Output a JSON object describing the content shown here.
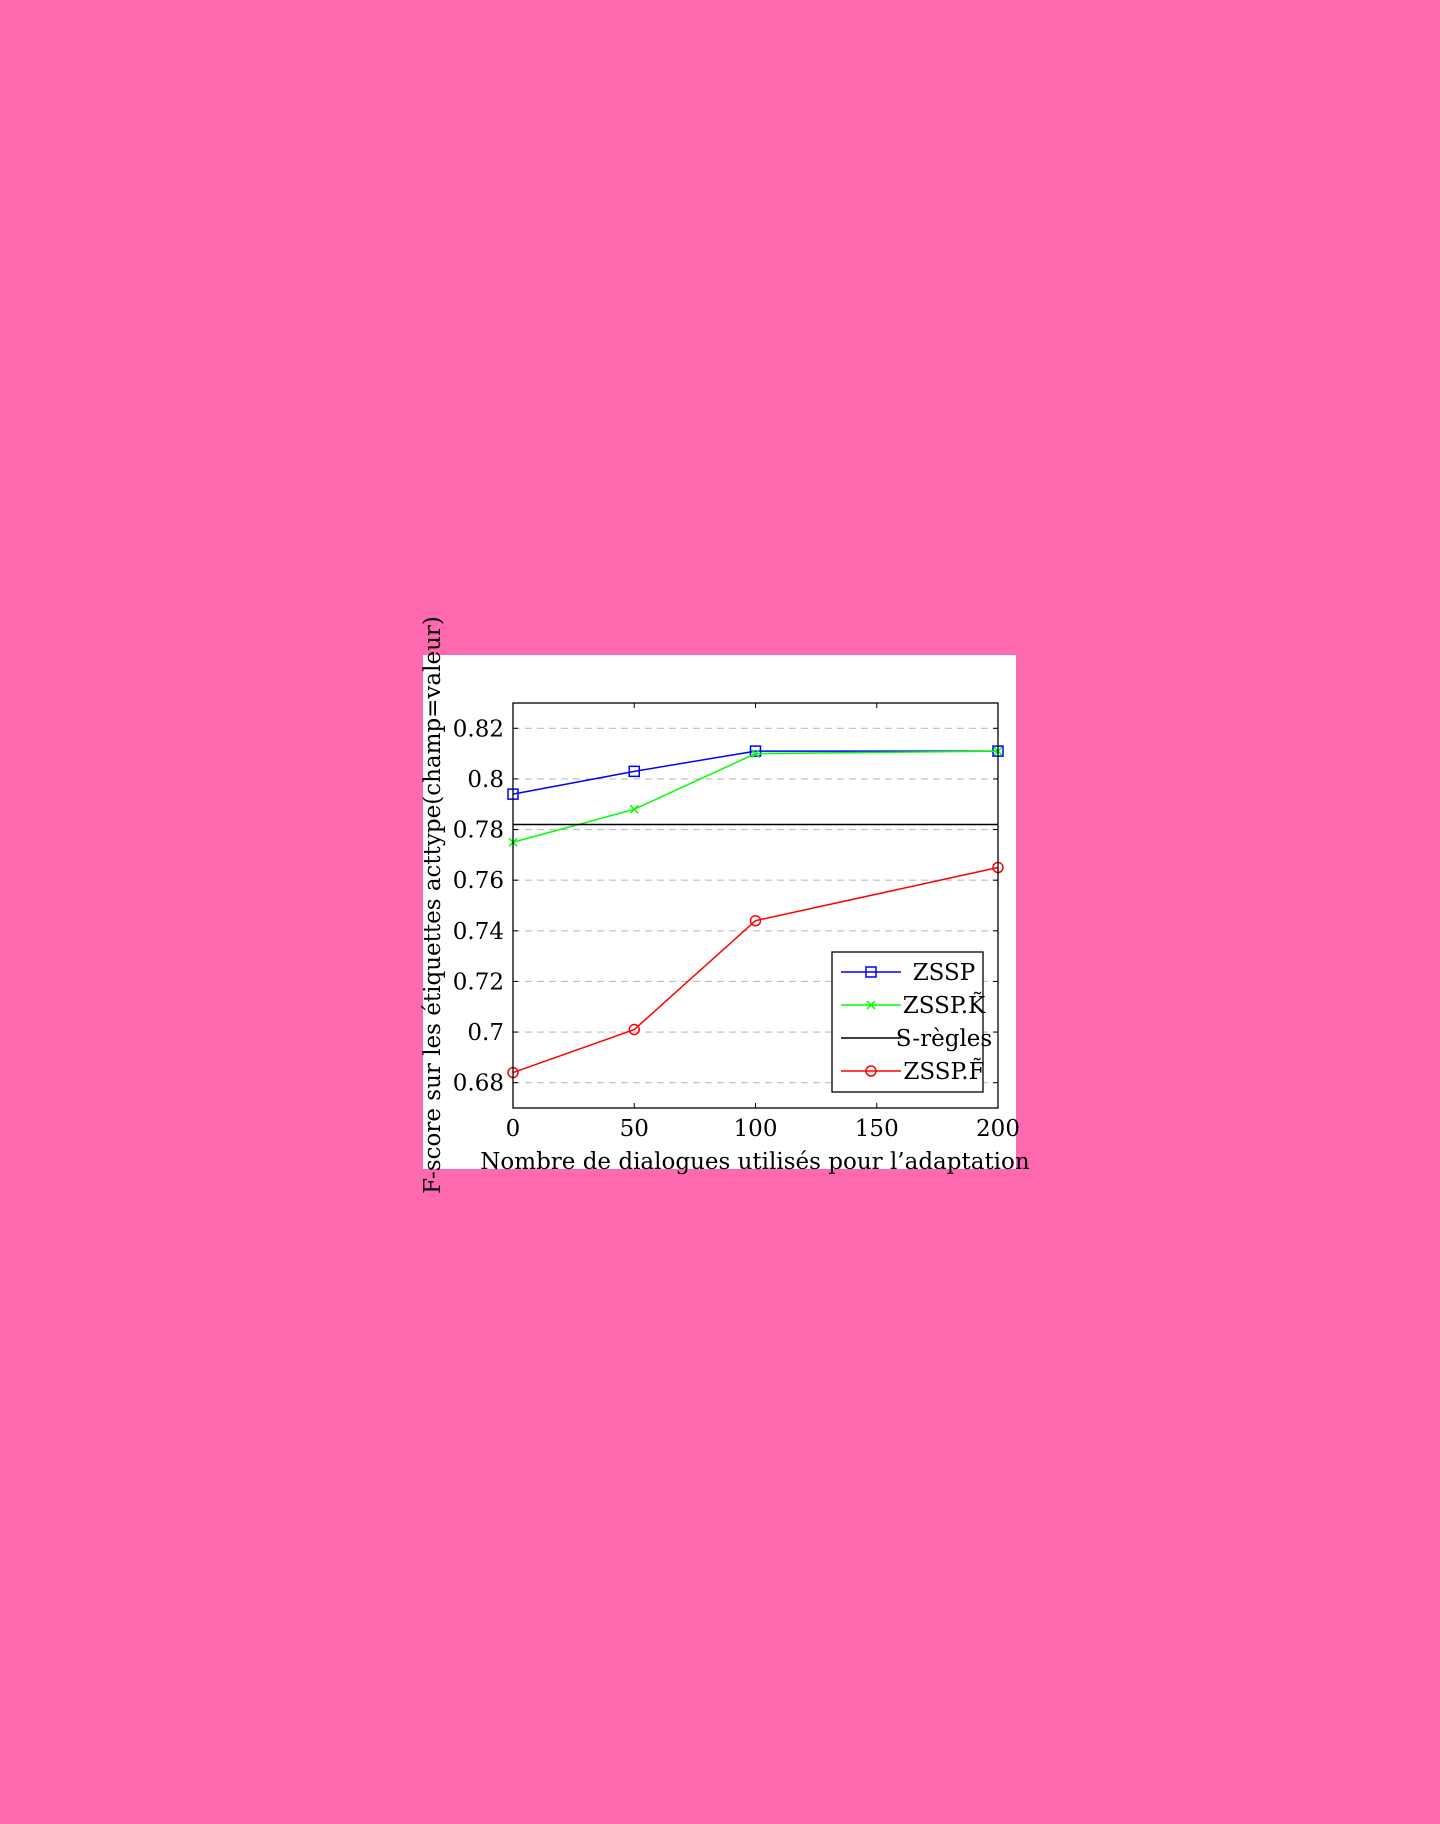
{
  "chart_data": {
    "type": "line",
    "xlabel": "Nombre de dialogues utilisés pour l’adaptation",
    "ylabel": "F-score sur les étiquettes acttype(champ=valeur)",
    "x": [
      0,
      50,
      100,
      150,
      200
    ],
    "xlim": [
      0,
      200
    ],
    "ylim": [
      0.67,
      0.83
    ],
    "x_ticks": [
      "0",
      "50",
      "100",
      "150",
      "200"
    ],
    "y_ticks": [
      "0.68",
      "0.7",
      "0.72",
      "0.74",
      "0.76",
      "0.78",
      "0.8",
      "0.82"
    ],
    "grid": "horizontal dashed",
    "legend_position": "bottom-right",
    "series": [
      {
        "name": "ZSSP",
        "color": "#0000ff",
        "marker": "square",
        "x": [
          0,
          50,
          100,
          200
        ],
        "values": [
          0.794,
          0.803,
          0.811,
          0.811
        ]
      },
      {
        "name": "ZSSP.K̃",
        "color": "#00ff00",
        "marker": "cross",
        "x": [
          0,
          50,
          100,
          200
        ],
        "values": [
          0.775,
          0.788,
          0.81,
          0.811
        ]
      },
      {
        "name": "S-règles",
        "color": "#000000",
        "marker": "none",
        "x": [
          0,
          200
        ],
        "values": [
          0.782,
          0.782
        ]
      },
      {
        "name": "ZSSP.F̃",
        "color": "#ff0000",
        "marker": "circle",
        "x": [
          0,
          50,
          100,
          200
        ],
        "values": [
          0.684,
          0.701,
          0.744,
          0.765
        ]
      }
    ]
  }
}
